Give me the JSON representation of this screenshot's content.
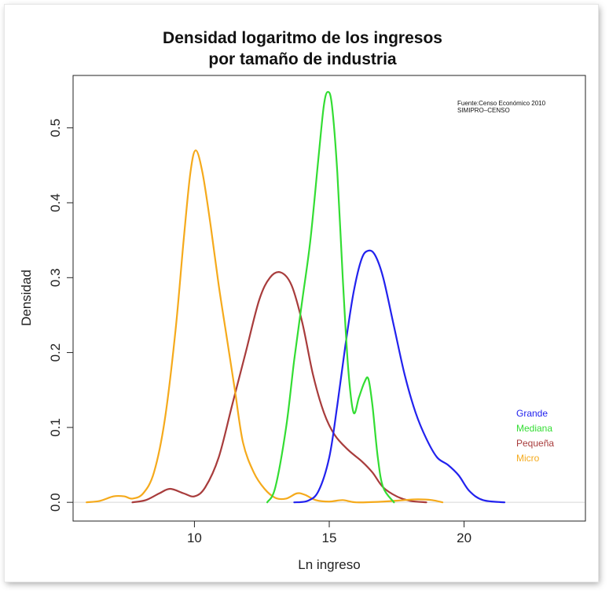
{
  "chart_data": {
    "type": "line",
    "title_line1": "Densidad logaritmo de los ingresos",
    "title_line2": "por tamaño de industria",
    "xlabel": "Ln ingreso",
    "ylabel": "Densidad",
    "xlim": [
      5.5,
      24.5
    ],
    "ylim": [
      -0.025,
      0.57
    ],
    "x_ticks": [
      10,
      15,
      20
    ],
    "y_ticks": [
      0.0,
      0.1,
      0.2,
      0.3,
      0.4,
      0.5
    ],
    "y_tick_labels": [
      "0.0",
      "0.1",
      "0.2",
      "0.3",
      "0.4",
      "0.5"
    ],
    "source_note": [
      "Fuente:Censo Económico 2010",
      "SIMIPRO–CENSO"
    ],
    "legend_position": "right",
    "grid": false,
    "series": [
      {
        "name": "Grande",
        "color": "#2222ee",
        "points": [
          [
            13.7,
            0.0
          ],
          [
            14.2,
            0.002
          ],
          [
            14.6,
            0.015
          ],
          [
            15.0,
            0.06
          ],
          [
            15.3,
            0.13
          ],
          [
            15.6,
            0.21
          ],
          [
            15.9,
            0.28
          ],
          [
            16.2,
            0.325
          ],
          [
            16.45,
            0.336
          ],
          [
            16.7,
            0.33
          ],
          [
            17.0,
            0.3
          ],
          [
            17.4,
            0.235
          ],
          [
            17.8,
            0.17
          ],
          [
            18.2,
            0.12
          ],
          [
            18.6,
            0.085
          ],
          [
            19.0,
            0.06
          ],
          [
            19.4,
            0.05
          ],
          [
            19.8,
            0.036
          ],
          [
            20.2,
            0.015
          ],
          [
            20.7,
            0.003
          ],
          [
            21.5,
            0.0
          ]
        ]
      },
      {
        "name": "Mediana",
        "color": "#33dd33",
        "points": [
          [
            12.7,
            0.0
          ],
          [
            13.0,
            0.02
          ],
          [
            13.4,
            0.1
          ],
          [
            13.7,
            0.19
          ],
          [
            14.0,
            0.27
          ],
          [
            14.3,
            0.35
          ],
          [
            14.6,
            0.46
          ],
          [
            14.8,
            0.53
          ],
          [
            14.95,
            0.548
          ],
          [
            15.1,
            0.53
          ],
          [
            15.3,
            0.44
          ],
          [
            15.5,
            0.3
          ],
          [
            15.7,
            0.18
          ],
          [
            15.9,
            0.12
          ],
          [
            16.1,
            0.14
          ],
          [
            16.3,
            0.16
          ],
          [
            16.45,
            0.165
          ],
          [
            16.6,
            0.13
          ],
          [
            16.8,
            0.06
          ],
          [
            17.0,
            0.02
          ],
          [
            17.4,
            0.0
          ]
        ]
      },
      {
        "name": "Pequeña",
        "color": "#a83c3c",
        "points": [
          [
            7.7,
            0.0
          ],
          [
            8.2,
            0.003
          ],
          [
            8.7,
            0.012
          ],
          [
            9.1,
            0.018
          ],
          [
            9.6,
            0.012
          ],
          [
            10.0,
            0.008
          ],
          [
            10.4,
            0.02
          ],
          [
            10.9,
            0.06
          ],
          [
            11.4,
            0.13
          ],
          [
            11.9,
            0.2
          ],
          [
            12.4,
            0.27
          ],
          [
            12.8,
            0.3
          ],
          [
            13.2,
            0.307
          ],
          [
            13.6,
            0.29
          ],
          [
            14.0,
            0.24
          ],
          [
            14.4,
            0.17
          ],
          [
            14.8,
            0.12
          ],
          [
            15.2,
            0.09
          ],
          [
            15.7,
            0.07
          ],
          [
            16.2,
            0.055
          ],
          [
            16.6,
            0.04
          ],
          [
            17.0,
            0.02
          ],
          [
            17.5,
            0.008
          ],
          [
            18.0,
            0.002
          ],
          [
            18.6,
            0.0
          ]
        ]
      },
      {
        "name": "Micro",
        "color": "#f5aa1c",
        "points": [
          [
            6.0,
            0.0
          ],
          [
            6.5,
            0.002
          ],
          [
            7.0,
            0.008
          ],
          [
            7.4,
            0.008
          ],
          [
            7.7,
            0.005
          ],
          [
            8.1,
            0.012
          ],
          [
            8.5,
            0.04
          ],
          [
            8.9,
            0.11
          ],
          [
            9.3,
            0.23
          ],
          [
            9.6,
            0.35
          ],
          [
            9.85,
            0.44
          ],
          [
            10.05,
            0.47
          ],
          [
            10.3,
            0.44
          ],
          [
            10.6,
            0.37
          ],
          [
            10.9,
            0.29
          ],
          [
            11.2,
            0.22
          ],
          [
            11.5,
            0.15
          ],
          [
            11.8,
            0.08
          ],
          [
            12.2,
            0.04
          ],
          [
            12.6,
            0.018
          ],
          [
            13.0,
            0.006
          ],
          [
            13.4,
            0.005
          ],
          [
            13.8,
            0.012
          ],
          [
            14.1,
            0.01
          ],
          [
            14.5,
            0.003
          ],
          [
            15.0,
            0.001
          ],
          [
            15.5,
            0.003
          ],
          [
            16.0,
            0.0
          ],
          [
            17.0,
            0.001
          ],
          [
            17.8,
            0.003
          ],
          [
            18.3,
            0.004
          ],
          [
            18.8,
            0.003
          ],
          [
            19.2,
            0.0
          ]
        ]
      }
    ]
  }
}
